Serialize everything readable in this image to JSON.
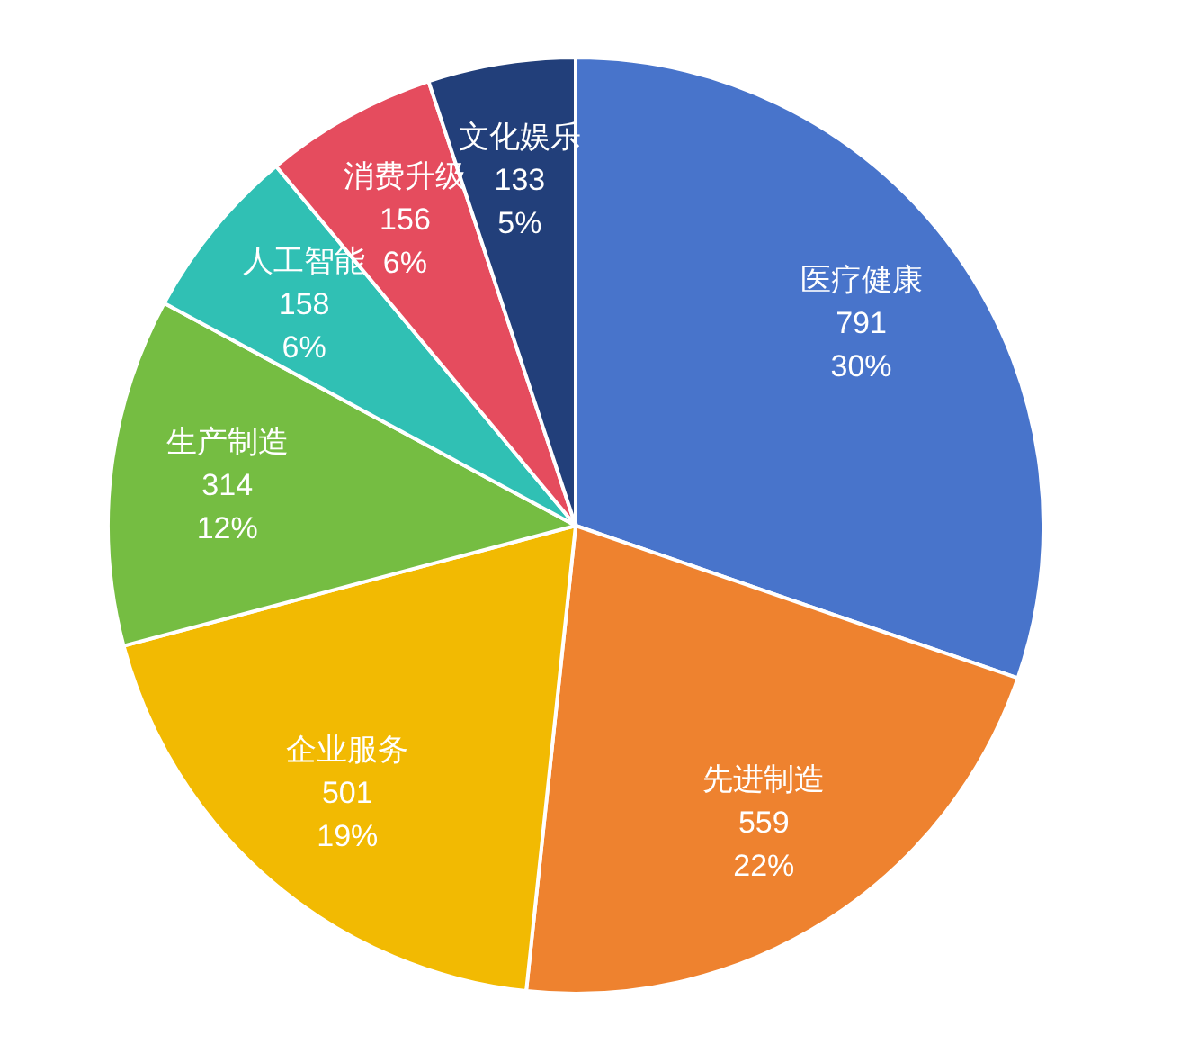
{
  "chart_data": {
    "type": "pie",
    "categories": [
      "医疗健康",
      "先进制造",
      "企业服务",
      "生产制造",
      "人工智能",
      "消费升级",
      "文化娱乐"
    ],
    "values": [
      791,
      559,
      501,
      314,
      158,
      156,
      133
    ],
    "colors": [
      "#4874cb",
      "#ee822f",
      "#f2ba02",
      "#75bd42",
      "#30c0b4",
      "#e54c5e",
      "#223f7a"
    ],
    "value_labels": [
      "791\n30%",
      "559\n22%",
      "501\n19%",
      "314\n12%",
      "158\n6%",
      "156\n6%",
      "133\n5%"
    ],
    "legend": false
  }
}
